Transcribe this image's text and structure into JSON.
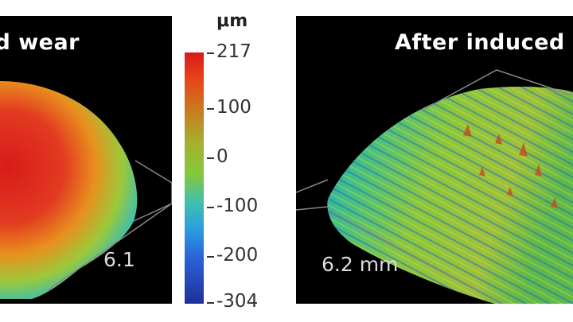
{
  "panels": {
    "left": {
      "title": "d wear",
      "dimension": "6.1"
    },
    "right": {
      "title": "After induced",
      "dimension": "6.2 mm"
    }
  },
  "colorbar": {
    "unit": "μm",
    "ticks": [
      "217",
      "100",
      "0",
      "-100",
      "-200",
      "-304"
    ]
  }
}
